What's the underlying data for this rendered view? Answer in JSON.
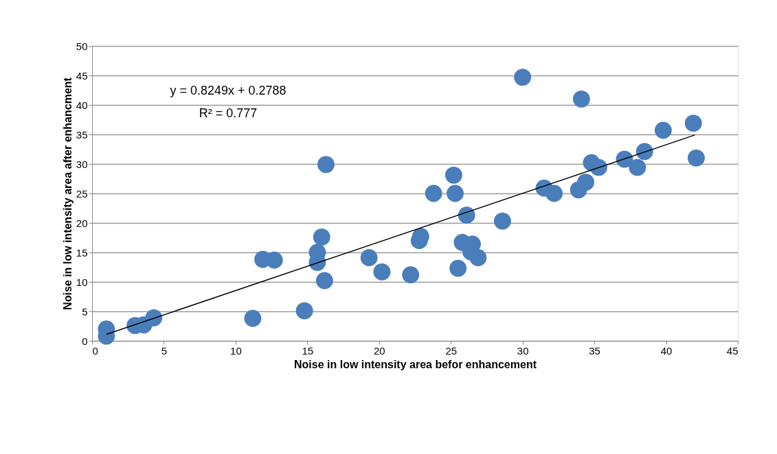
{
  "chart_data": {
    "type": "scatter",
    "xlabel": "Noise in low intensity area befor enhancement",
    "ylabel": "Noise in low intensity area after enhancment",
    "annotations": [
      "y = 0.8249x + 0.2788",
      "R² = 0.777"
    ],
    "xlim": [
      0,
      45
    ],
    "xticks": [
      0,
      5,
      10,
      15,
      20,
      25,
      30,
      35,
      40,
      45
    ],
    "ylim": [
      0,
      50
    ],
    "yticks": [
      0,
      5,
      10,
      15,
      20,
      25,
      30,
      35,
      40,
      45,
      50
    ],
    "grid": "y",
    "marker": "circle",
    "series": [
      {
        "color": "#4a7ebb",
        "x": [
          1.0,
          1.0,
          3.0,
          3.6,
          4.3,
          11.2,
          14.8,
          11.9,
          12.7,
          15.7,
          15.7,
          16.0,
          16.2,
          16.3,
          19.3,
          20.2,
          22.2,
          22.9,
          22.8,
          23.8,
          25.2,
          25.3,
          25.5,
          26.1,
          25.8,
          26.5,
          26.4,
          26.9,
          28.6,
          30.0,
          31.5,
          32.2,
          33.9,
          34.1,
          34.4,
          34.8,
          35.3,
          37.1,
          38.0,
          38.5,
          39.8,
          41.9,
          42.1
        ],
        "values": [
          2.0,
          0.8,
          2.6,
          2.7,
          3.9,
          3.8,
          5.1,
          13.8,
          13.7,
          13.3,
          15.0,
          17.6,
          10.2,
          29.9,
          14.1,
          11.7,
          11.2,
          17.7,
          17.0,
          25.0,
          28.1,
          25.0,
          12.3,
          21.3,
          16.7,
          16.4,
          15.1,
          14.1,
          20.3,
          44.7,
          25.9,
          25.0,
          25.6,
          41.0,
          26.9,
          30.2,
          29.4,
          30.8,
          29.4,
          32.1,
          35.7,
          36.9,
          31.0
        ]
      },
      {
        "type": "line",
        "marker": "none",
        "color": "#000000",
        "x": [
          1.0,
          42.0
        ],
        "values": [
          1.1,
          34.9
        ]
      }
    ]
  }
}
